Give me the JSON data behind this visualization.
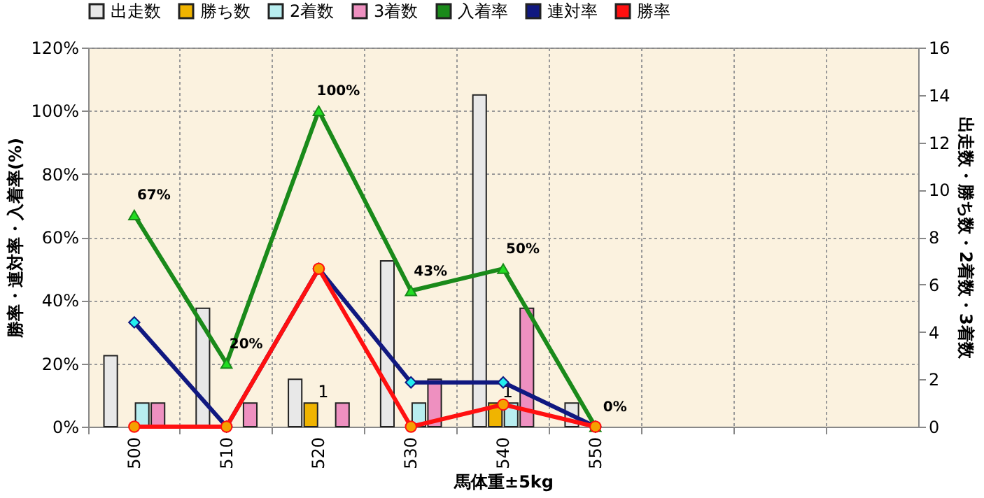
{
  "chart_data": {
    "type": "bar",
    "categories": [
      "500",
      "510",
      "520",
      "530",
      "540",
      "550",
      null,
      null,
      null
    ],
    "xlabel": "馬体重±5kg",
    "ylabel": "勝率・連対率・入着率(%)",
    "y2label": "出走数・勝ち数・2着数・3着数",
    "series": [
      {
        "name": "出走数",
        "axis": "y2",
        "color": "#e8e8e8",
        "values": [
          3,
          5,
          2,
          7,
          14,
          1,
          null,
          null,
          null
        ]
      },
      {
        "name": "勝ち数",
        "axis": "y2",
        "color": "#f0b400",
        "values": [
          0,
          0,
          1,
          0,
          1,
          0,
          null,
          null,
          null
        ],
        "value_labels": [
          null,
          null,
          "1",
          null,
          "1",
          null,
          null,
          null,
          null
        ]
      },
      {
        "name": "2着数",
        "axis": "y2",
        "color": "#b8eef0",
        "values": [
          1,
          0,
          0,
          1,
          1,
          0,
          null,
          null,
          null
        ]
      },
      {
        "name": "3着数",
        "axis": "y2",
        "color": "#ee90c0",
        "values": [
          1,
          1,
          1,
          2,
          5,
          0,
          null,
          null,
          null
        ]
      },
      {
        "name": "入着率",
        "type": "line",
        "color": "#1a8a1a",
        "marker": "triangle",
        "values": [
          67,
          20,
          100,
          43,
          50,
          0,
          null,
          null,
          null
        ],
        "value_labels": [
          "67%",
          "20%",
          "100%",
          "43%",
          "50%",
          "0%",
          null,
          null,
          null
        ]
      },
      {
        "name": "連対率",
        "type": "line",
        "color": "#101880",
        "marker": "diamond",
        "values": [
          33,
          0,
          50,
          14,
          14,
          0,
          null,
          null,
          null
        ]
      },
      {
        "name": "勝率",
        "type": "line",
        "color": "#ff1010",
        "marker": "circle",
        "values": [
          0,
          0,
          50,
          0,
          7,
          0,
          null,
          null,
          null
        ]
      }
    ],
    "ylim": [
      0,
      120
    ],
    "yticks": [
      {
        "value": 0,
        "label": "0%"
      },
      {
        "value": 20,
        "label": "20%"
      },
      {
        "value": 40,
        "label": "40%"
      },
      {
        "value": 60,
        "label": "60%"
      },
      {
        "value": 80,
        "label": "80%"
      },
      {
        "value": 100,
        "label": "100%"
      },
      {
        "value": 120,
        "label": "120%"
      }
    ],
    "y2lim": [
      0,
      16
    ],
    "y2ticks": [
      0,
      2,
      4,
      6,
      8,
      10,
      12,
      14,
      16
    ],
    "grid": true,
    "legend": "top"
  }
}
